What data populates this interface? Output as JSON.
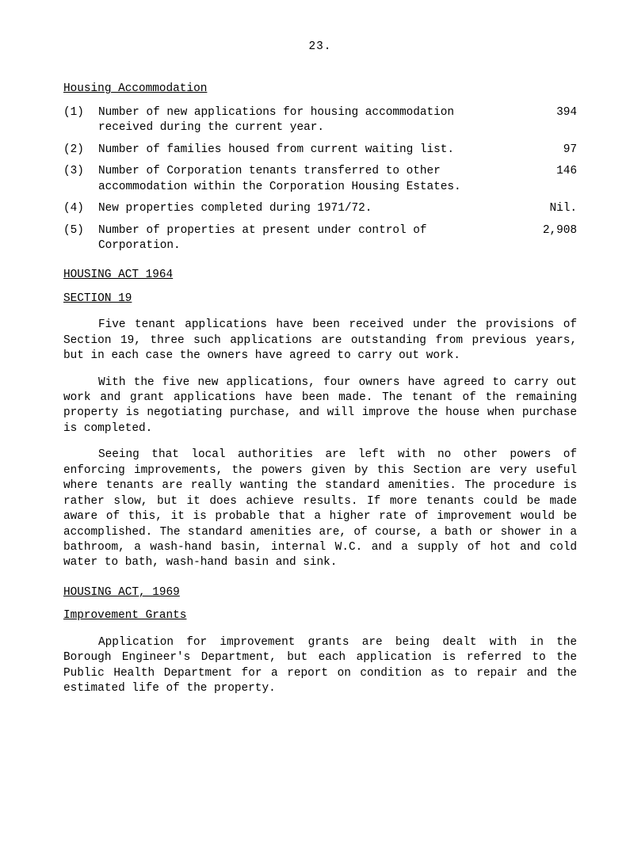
{
  "page_number": "23.",
  "heading_accomm": "Housing Accommodation",
  "items": [
    {
      "num": "(1)",
      "text": "Number of new applications for housing accommodation received during the current year.",
      "val": "394"
    },
    {
      "num": "(2)",
      "text": "Number of families housed from current waiting list.",
      "val": "97"
    },
    {
      "num": "(3)",
      "text": "Number of Corporation tenants transferred to other accommodation within the Corporation Housing Estates.",
      "val": "146"
    },
    {
      "num": "(4)",
      "text": "New properties completed during 1971/72.",
      "val": "Nil."
    },
    {
      "num": "(5)",
      "text": "Number of properties at present under control of Corporation.",
      "val": "2,908"
    }
  ],
  "heading_act64": "HOUSING ACT 1964",
  "heading_sec19": "SECTION 19",
  "para1": "Five tenant applications have been received under the provisions of Section 19, three such applications are outstanding from previous years, but in each case the owners have agreed to carry out work.",
  "para2": "With the five new applications, four owners have agreed to carry out work and grant applications have been made.  The tenant of the remaining property is negotiating purchase, and will improve the house when purchase is completed.",
  "para3": "Seeing that local authorities are left with no other powers of enforcing improvements, the powers given by this Section are very useful where tenants are really wanting the standard amenities. The procedure is rather slow, but it does achieve results.  If more tenants could be made aware of this, it is probable that a higher rate of improvement would be accomplished.  The standard amenities are, of course, a bath or shower in a bathroom, a wash-hand basin, internal W.C. and a supply of hot and cold water to bath, wash-hand basin and sink.",
  "heading_act69": "HOUSING ACT, 1969",
  "heading_grants": "Improvement Grants",
  "para4": "Application for improvement grants are being dealt with in the Borough Engineer's Department, but each application is referred to the Public Health Department for a report on condition as to repair and the estimated life of the property."
}
